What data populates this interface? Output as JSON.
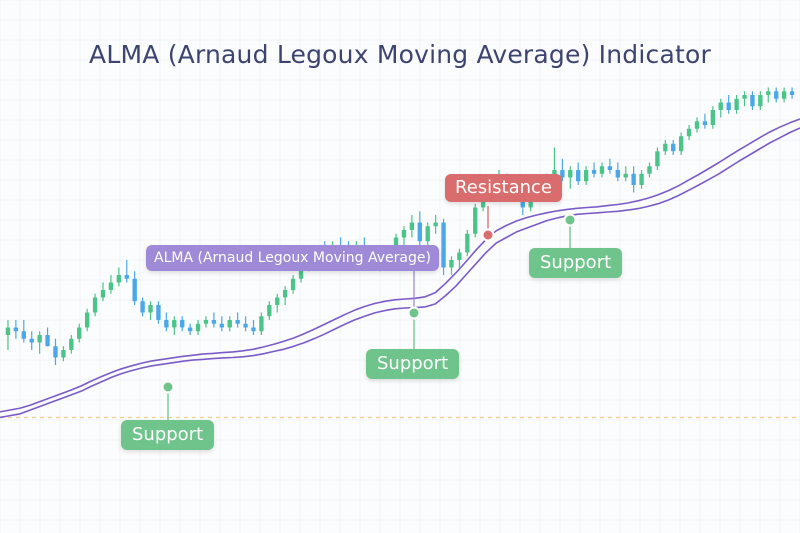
{
  "title": "ALMA (Arnaud Legoux Moving Average) Indicator",
  "colors": {
    "bull": "#4bc48a",
    "bear": "#4aa8e8",
    "alma_line": "#7a5cc8",
    "support": "#6fc48c",
    "resistance": "#d96c6c",
    "alma_label_bg": "#9f8ad8",
    "dashed_baseline": "#f3d089",
    "grid": "#e9edf2"
  },
  "annotations": {
    "alma_label": "ALMA (Arnaud Legoux Moving Average)",
    "resistance": "Resistance",
    "support_1": "Support",
    "support_2": "Support",
    "support_3": "Support"
  },
  "chart_data": {
    "type": "candlestick",
    "title": "ALMA (Arnaud Legoux Moving Average) Indicator",
    "xlabel": "",
    "ylabel": "",
    "grid": true,
    "axes_visible": false,
    "ylim": [
      0,
      100
    ],
    "candles_ohlc": [
      [
        32,
        36,
        28,
        34
      ],
      [
        34,
        36,
        31,
        33
      ],
      [
        33,
        36,
        30,
        31
      ],
      [
        31,
        33,
        28,
        30
      ],
      [
        30,
        33,
        27,
        32
      ],
      [
        32,
        34,
        29,
        29
      ],
      [
        29,
        31,
        24,
        26
      ],
      [
        26,
        29,
        25,
        28
      ],
      [
        28,
        32,
        27,
        31
      ],
      [
        31,
        35,
        30,
        34
      ],
      [
        34,
        39,
        33,
        38
      ],
      [
        38,
        43,
        37,
        42
      ],
      [
        42,
        46,
        41,
        44
      ],
      [
        44,
        48,
        43,
        46
      ],
      [
        46,
        50,
        45,
        48
      ],
      [
        48,
        52,
        46,
        47
      ],
      [
        47,
        49,
        40,
        41
      ],
      [
        41,
        42,
        37,
        38
      ],
      [
        38,
        41,
        36,
        40
      ],
      [
        40,
        41,
        35,
        36
      ],
      [
        36,
        38,
        33,
        34
      ],
      [
        34,
        37,
        32,
        36
      ],
      [
        36,
        37,
        33,
        34
      ],
      [
        34,
        35,
        32,
        33
      ],
      [
        33,
        36,
        32,
        35
      ],
      [
        35,
        37,
        34,
        36
      ],
      [
        36,
        38,
        34,
        35
      ],
      [
        35,
        37,
        33,
        34
      ],
      [
        34,
        37,
        33,
        36
      ],
      [
        36,
        38,
        34,
        35
      ],
      [
        35,
        37,
        33,
        34
      ],
      [
        34,
        36,
        32,
        33
      ],
      [
        33,
        38,
        32,
        37
      ],
      [
        37,
        41,
        36,
        40
      ],
      [
        40,
        43,
        38,
        42
      ],
      [
        42,
        45,
        40,
        44
      ],
      [
        44,
        48,
        43,
        47
      ],
      [
        47,
        51,
        46,
        50
      ],
      [
        50,
        54,
        49,
        53
      ],
      [
        53,
        56,
        51,
        55
      ],
      [
        55,
        57,
        53,
        54
      ],
      [
        54,
        57,
        52,
        56
      ],
      [
        56,
        58,
        54,
        55
      ],
      [
        55,
        57,
        53,
        54
      ],
      [
        54,
        57,
        52,
        56
      ],
      [
        56,
        58,
        54,
        55
      ],
      [
        55,
        56,
        51,
        52
      ],
      [
        52,
        54,
        49,
        53
      ],
      [
        53,
        56,
        51,
        55
      ],
      [
        55,
        59,
        53,
        58
      ],
      [
        58,
        61,
        56,
        60
      ],
      [
        60,
        64,
        58,
        62
      ],
      [
        62,
        65,
        55,
        57
      ],
      [
        57,
        62,
        55,
        61
      ],
      [
        61,
        64,
        59,
        62
      ],
      [
        62,
        63,
        48,
        50
      ],
      [
        50,
        53,
        48,
        52
      ],
      [
        52,
        55,
        50,
        54
      ],
      [
        54,
        60,
        53,
        59
      ],
      [
        59,
        67,
        58,
        66
      ],
      [
        66,
        72,
        65,
        71
      ],
      [
        71,
        74,
        69,
        73
      ],
      [
        73,
        76,
        71,
        74
      ],
      [
        74,
        75,
        69,
        70
      ],
      [
        70,
        73,
        68,
        72
      ],
      [
        72,
        74,
        64,
        66
      ],
      [
        66,
        71,
        65,
        70
      ],
      [
        70,
        74,
        69,
        73
      ],
      [
        73,
        75,
        71,
        74
      ],
      [
        74,
        82,
        73,
        76
      ],
      [
        76,
        79,
        73,
        74
      ],
      [
        74,
        77,
        71,
        76
      ],
      [
        76,
        78,
        72,
        73
      ],
      [
        73,
        77,
        72,
        76
      ],
      [
        76,
        78,
        74,
        75
      ],
      [
        75,
        78,
        74,
        77
      ],
      [
        77,
        79,
        75,
        76
      ],
      [
        76,
        78,
        73,
        74
      ],
      [
        74,
        77,
        73,
        75
      ],
      [
        75,
        77,
        70,
        72
      ],
      [
        72,
        76,
        71,
        75
      ],
      [
        75,
        78,
        74,
        77
      ],
      [
        77,
        82,
        76,
        81
      ],
      [
        81,
        84,
        80,
        83
      ],
      [
        83,
        84,
        80,
        81
      ],
      [
        81,
        86,
        80,
        85
      ],
      [
        85,
        88,
        84,
        87
      ],
      [
        87,
        90,
        86,
        89
      ],
      [
        89,
        91,
        87,
        88
      ],
      [
        88,
        93,
        87,
        92
      ],
      [
        92,
        95,
        90,
        94
      ],
      [
        94,
        96,
        91,
        92
      ],
      [
        92,
        96,
        91,
        95
      ],
      [
        95,
        97,
        93,
        96
      ],
      [
        96,
        97,
        92,
        93
      ],
      [
        93,
        97,
        92,
        96
      ],
      [
        96,
        98,
        94,
        97
      ],
      [
        97,
        98,
        94,
        95
      ],
      [
        95,
        98,
        94,
        97
      ],
      [
        97,
        98,
        95,
        96
      ]
    ],
    "alma_series": [
      {
        "values": [
          10,
          10.5,
          11,
          12,
          13,
          14,
          15,
          16,
          17,
          18.3,
          19.5,
          20.7,
          21.7,
          22.5,
          23.2,
          23.8,
          24.2,
          24.6,
          25,
          25.3,
          25.5,
          25.7,
          25.9,
          26,
          26.2,
          26.5,
          27,
          27.6,
          28.2,
          29,
          29.9,
          31,
          32.2,
          33.5,
          34.8,
          36,
          37,
          37.9,
          38.5,
          39,
          39.2,
          39.3,
          39.5,
          40.3,
          42.5,
          45,
          48,
          51,
          54,
          56.5,
          58,
          59.5,
          60.5,
          61.5,
          62.5,
          63.2,
          63.8,
          64.2,
          64.4,
          64.6,
          64.8,
          65,
          65.3,
          65.7,
          66.3,
          67,
          68,
          69.2,
          70.6,
          72,
          73.5,
          75,
          76.7,
          78.4,
          80,
          81.6,
          83.2,
          84.6,
          86,
          87.2
        ]
      },
      {
        "values": [
          11.5,
          12,
          12.5,
          13.3,
          14.3,
          15.3,
          16.3,
          17.3,
          18.4,
          19.7,
          20.9,
          22,
          23,
          23.8,
          24.5,
          25.1,
          25.5,
          25.9,
          26.3,
          26.6,
          26.9,
          27.1,
          27.3,
          27.5,
          27.8,
          28.2,
          28.8,
          29.5,
          30.3,
          31.2,
          32.3,
          33.5,
          34.8,
          36.1,
          37.4,
          38.6,
          39.6,
          40.4,
          41,
          41.4,
          41.6,
          41.8,
          42.2,
          43.3,
          45.8,
          48.5,
          51.5,
          54.6,
          57.5,
          59.8,
          61.2,
          62.4,
          63.3,
          64,
          64.6,
          65.1,
          65.5,
          65.8,
          66,
          66.2,
          66.5,
          66.8,
          67.2,
          67.8,
          68.5,
          69.4,
          70.5,
          71.8,
          73.3,
          74.8,
          76.4,
          78,
          79.7,
          81.4,
          83,
          84.6,
          86.1,
          87.4,
          88.6,
          89.6
        ]
      }
    ],
    "baseline_dashed": 10,
    "annotations": [
      {
        "text": "ALMA (Arnaud Legoux Moving Average)",
        "type": "label"
      },
      {
        "text": "Resistance",
        "type": "resistance"
      },
      {
        "text": "Support",
        "type": "support"
      },
      {
        "text": "Support",
        "type": "support"
      },
      {
        "text": "Support",
        "type": "support"
      }
    ]
  }
}
